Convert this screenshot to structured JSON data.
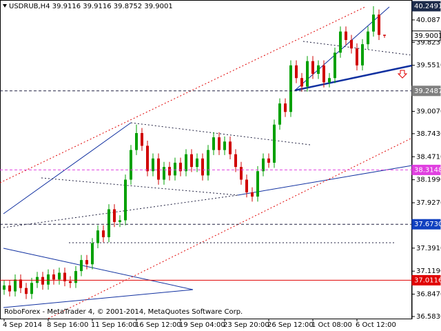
{
  "chart_data": {
    "type": "candlestick",
    "title": "USDRUB,H4  39.9116 39.9116 39.8752 39.9001",
    "footer": "RoboForex - MetaTrader 4, © 2001-2014, MetaQuotes Software Corp.",
    "up_color": "#00a000",
    "down_color": "#d00000",
    "ylim": [
      36.5341,
      40.3224
    ],
    "yticks": [
      {
        "value": 40.0871,
        "label": "40.0871"
      },
      {
        "value": 39.823,
        "label": "39.8230"
      },
      {
        "value": 39.551,
        "label": "39.5510"
      },
      {
        "value": 39.007,
        "label": "39.0070"
      },
      {
        "value": 38.743,
        "label": "38.7430"
      },
      {
        "value": 38.471,
        "label": "38.4710"
      },
      {
        "value": 38.199,
        "label": "38.1990"
      },
      {
        "value": 37.927,
        "label": "37.9270"
      },
      {
        "value": 37.391,
        "label": "37.3910"
      },
      {
        "value": 37.119,
        "label": "37.1190"
      },
      {
        "value": 36.847,
        "label": "36.8470"
      },
      {
        "value": 36.583,
        "label": "36.5830"
      }
    ],
    "levels": [
      {
        "price": 40.2491,
        "color": "#1c2b4a",
        "text_color": "#ffffff",
        "line": "none"
      },
      {
        "price": 39.9001,
        "color": "#ffffff",
        "text_color": "#000000",
        "line": "none"
      },
      {
        "price": 39.2487,
        "color": "#808080",
        "text_color": "#ffffff",
        "line": "dashed"
      },
      {
        "price": 38.3148,
        "color": "#e040e0",
        "text_color": "#ffffff",
        "line": "dashed"
      },
      {
        "price": 37.673,
        "label": "37.6730",
        "color": "#1040c0",
        "text_color": "#ffffff",
        "line": "dashed"
      },
      {
        "price": 37.0116,
        "color": "#e00000",
        "text_color": "#ffffff",
        "line": "solid"
      }
    ],
    "categories": [
      "4 Sep 2014",
      null,
      null,
      null,
      null,
      null,
      null,
      null,
      "8 Sep 16:00",
      null,
      null,
      null,
      null,
      null,
      null,
      null,
      "11 Sep 16:00",
      null,
      null,
      null,
      null,
      null,
      null,
      null,
      "16 Sep 12:00",
      null,
      null,
      null,
      null,
      null,
      null,
      null,
      "19 Sep 04:00",
      null,
      null,
      null,
      null,
      null,
      null,
      null,
      "23 Sep 20:00",
      null,
      null,
      null,
      null,
      null,
      null,
      null,
      "26 Sep 12:00",
      null,
      null,
      null,
      null,
      null,
      null,
      null,
      "1 Oct 08:00",
      null,
      null,
      null,
      null,
      null,
      null,
      null,
      "6 Oct 12:00",
      null,
      null,
      null,
      null,
      null
    ],
    "ohlc": [
      [
        36.9,
        37.01,
        36.84,
        36.95
      ],
      [
        36.95,
        37.01,
        36.82,
        36.88
      ],
      [
        36.88,
        37.08,
        36.82,
        37.02
      ],
      [
        37.02,
        37.08,
        36.86,
        36.92
      ],
      [
        36.92,
        36.98,
        36.79,
        36.85
      ],
      [
        36.85,
        37.04,
        36.79,
        36.98
      ],
      [
        36.98,
        37.11,
        36.92,
        37.05
      ],
      [
        37.05,
        37.11,
        36.9,
        36.96
      ],
      [
        36.96,
        37.14,
        36.9,
        37.08
      ],
      [
        37.08,
        37.14,
        36.96,
        37.02
      ],
      [
        37.02,
        37.16,
        36.96,
        37.1
      ],
      [
        37.1,
        37.16,
        36.94,
        37.0
      ],
      [
        37.0,
        37.06,
        36.92,
        36.98
      ],
      [
        36.98,
        37.18,
        36.92,
        37.12
      ],
      [
        37.12,
        37.31,
        37.06,
        37.25
      ],
      [
        37.25,
        37.31,
        37.14,
        37.2
      ],
      [
        37.2,
        37.51,
        37.14,
        37.45
      ],
      [
        37.45,
        37.66,
        37.39,
        37.6
      ],
      [
        37.6,
        37.66,
        37.46,
        37.52
      ],
      [
        37.52,
        37.91,
        37.46,
        37.85
      ],
      [
        37.85,
        37.91,
        37.64,
        37.7
      ],
      [
        37.7,
        37.78,
        37.64,
        37.72
      ],
      [
        37.72,
        38.26,
        37.66,
        38.2
      ],
      [
        38.2,
        38.61,
        38.14,
        38.55
      ],
      [
        38.55,
        38.85,
        38.49,
        38.75
      ],
      [
        38.75,
        38.81,
        38.54,
        38.6
      ],
      [
        38.6,
        38.66,
        38.24,
        38.3
      ],
      [
        38.3,
        38.51,
        38.24,
        38.45
      ],
      [
        38.45,
        38.51,
        38.14,
        38.2
      ],
      [
        38.2,
        38.41,
        38.14,
        38.35
      ],
      [
        38.35,
        38.41,
        38.19,
        38.25
      ],
      [
        38.25,
        38.46,
        38.19,
        38.4
      ],
      [
        38.4,
        38.46,
        38.24,
        38.3
      ],
      [
        38.3,
        38.56,
        38.24,
        38.5
      ],
      [
        38.5,
        38.56,
        38.29,
        38.35
      ],
      [
        38.35,
        38.51,
        38.29,
        38.45
      ],
      [
        38.45,
        38.51,
        38.19,
        38.25
      ],
      [
        38.25,
        38.61,
        38.19,
        38.55
      ],
      [
        38.55,
        38.76,
        38.49,
        38.7
      ],
      [
        38.7,
        38.76,
        38.49,
        38.55
      ],
      [
        38.55,
        38.71,
        38.49,
        38.65
      ],
      [
        38.65,
        38.71,
        38.44,
        38.5
      ],
      [
        38.5,
        38.56,
        38.29,
        38.35
      ],
      [
        38.35,
        38.41,
        38.14,
        38.2
      ],
      [
        38.2,
        38.26,
        37.99,
        38.05
      ],
      [
        38.05,
        38.11,
        37.94,
        38.0
      ],
      [
        38.0,
        38.36,
        37.94,
        38.3
      ],
      [
        38.3,
        38.51,
        38.24,
        38.45
      ],
      [
        38.45,
        38.51,
        38.34,
        38.4
      ],
      [
        38.4,
        38.91,
        38.34,
        38.85
      ],
      [
        38.85,
        39.16,
        38.79,
        39.1
      ],
      [
        39.1,
        39.16,
        38.94,
        39.0
      ],
      [
        39.0,
        39.61,
        38.94,
        39.55
      ],
      [
        39.55,
        39.61,
        39.34,
        39.4
      ],
      [
        39.4,
        39.46,
        39.24,
        39.3
      ],
      [
        39.3,
        39.66,
        39.24,
        39.6
      ],
      [
        39.6,
        39.66,
        39.39,
        39.45
      ],
      [
        39.45,
        39.61,
        39.39,
        39.55
      ],
      [
        39.55,
        39.61,
        39.29,
        39.35
      ],
      [
        39.35,
        39.46,
        39.29,
        39.4
      ],
      [
        39.4,
        39.76,
        39.34,
        39.7
      ],
      [
        39.7,
        40.01,
        39.64,
        39.95
      ],
      [
        39.95,
        40.01,
        39.79,
        39.85
      ],
      [
        39.85,
        39.91,
        39.69,
        39.75
      ],
      [
        39.75,
        39.81,
        39.49,
        39.55
      ],
      [
        39.55,
        39.86,
        39.49,
        39.8
      ],
      [
        39.8,
        40.01,
        39.74,
        39.95
      ],
      [
        39.95,
        40.2491,
        39.89,
        40.15
      ],
      [
        40.15,
        40.21,
        39.85,
        39.91
      ],
      [
        39.9116,
        39.9116,
        39.8752,
        39.9001
      ]
    ]
  }
}
